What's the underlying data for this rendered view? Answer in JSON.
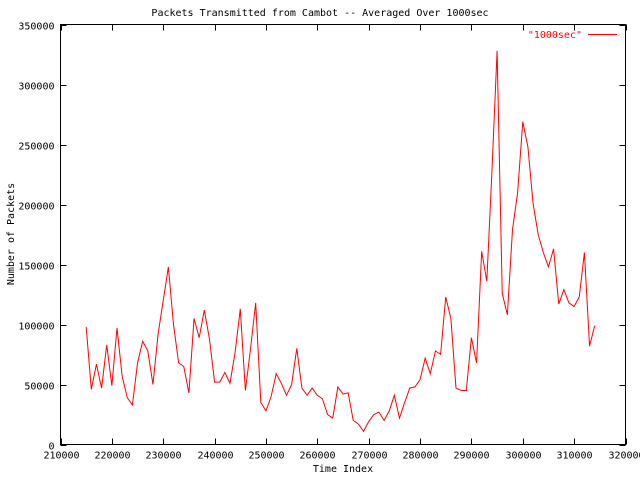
{
  "chart_data": {
    "type": "line",
    "title": "Packets Transmitted from Cambot -- Averaged Over 1000sec",
    "xlabel": "Time Index",
    "ylabel": "Number of Packets",
    "xlim": [
      210000,
      320000
    ],
    "ylim": [
      0,
      350000
    ],
    "xticks": [
      210000,
      220000,
      230000,
      240000,
      250000,
      260000,
      270000,
      280000,
      290000,
      300000,
      310000,
      320000
    ],
    "yticks": [
      0,
      50000,
      100000,
      150000,
      200000,
      250000,
      300000,
      350000
    ],
    "grid": false,
    "legend_position": "top-right",
    "series": [
      {
        "name": "\"1000sec\"",
        "color": "#ff0000",
        "x": [
          215000,
          216000,
          217000,
          218000,
          219000,
          220000,
          221000,
          222000,
          223000,
          224000,
          225000,
          226000,
          227000,
          228000,
          229000,
          230000,
          231000,
          232000,
          233000,
          234000,
          235000,
          236000,
          237000,
          238000,
          239000,
          240000,
          241000,
          242000,
          243000,
          244000,
          245000,
          246000,
          247000,
          248000,
          249000,
          250000,
          251000,
          252000,
          253000,
          254000,
          255000,
          256000,
          257000,
          258000,
          259000,
          260000,
          261000,
          262000,
          263000,
          264000,
          265000,
          266000,
          267000,
          268000,
          269000,
          270000,
          271000,
          272000,
          273000,
          274000,
          275000,
          276000,
          277000,
          278000,
          279000,
          280000,
          281000,
          282000,
          283000,
          284000,
          285000,
          286000,
          287000,
          288000,
          289000,
          290000,
          291000,
          292000,
          293000,
          294000,
          295000,
          296000,
          297000,
          298000,
          299000,
          300000,
          301000,
          302000,
          303000,
          304000,
          305000,
          306000,
          307000,
          308000,
          309000,
          310000,
          311000,
          312000,
          313000,
          314000
        ],
        "y": [
          98000,
          46000,
          67000,
          47000,
          83000,
          49000,
          97000,
          57000,
          39000,
          33000,
          68000,
          86000,
          78000,
          50000,
          92000,
          120000,
          148000,
          100000,
          68000,
          65000,
          43000,
          105000,
          89000,
          112000,
          88000,
          52000,
          52000,
          60000,
          51000,
          77000,
          113000,
          45000,
          80000,
          118000,
          35000,
          28000,
          40000,
          59000,
          51000,
          41000,
          50000,
          80000,
          47000,
          41000,
          47000,
          41000,
          38000,
          25000,
          22000,
          48000,
          42000,
          43000,
          20000,
          17000,
          11000,
          19000,
          25000,
          27000,
          20000,
          28000,
          41000,
          22000,
          35000,
          47000,
          48000,
          54000,
          72000,
          59000,
          78000,
          75000,
          123000,
          105000,
          47000,
          45000,
          45000,
          89000,
          68000,
          161000,
          136000,
          228000,
          328000,
          126000,
          108000,
          179000,
          210000,
          269000,
          248000,
          201000,
          175000,
          160000,
          148000,
          163000,
          117000,
          129000,
          118000,
          115000,
          123000,
          160000,
          82000,
          99000
        ]
      }
    ]
  }
}
